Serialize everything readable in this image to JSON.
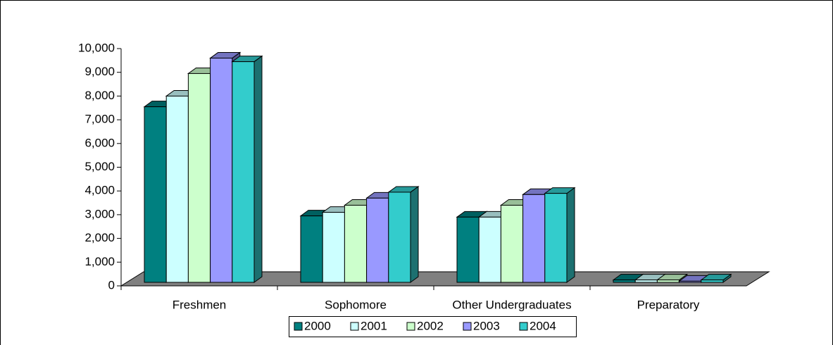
{
  "chart_data": {
    "type": "bar3d",
    "categories": [
      "Freshmen",
      "Sophomore",
      "Other Undergraduates",
      "Preparatory"
    ],
    "series": [
      {
        "name": "2000",
        "color": "#008080",
        "values": [
          7400,
          2800,
          2750,
          100
        ]
      },
      {
        "name": "2001",
        "color": "#CCFFFF",
        "values": [
          7850,
          2950,
          2750,
          100
        ]
      },
      {
        "name": "2002",
        "color": "#CCFFCC",
        "values": [
          8800,
          3250,
          3250,
          100
        ]
      },
      {
        "name": "2003",
        "color": "#9999FF",
        "values": [
          9450,
          3550,
          3700,
          50
        ]
      },
      {
        "name": "2004",
        "color": "#33CCCC",
        "values": [
          9300,
          3800,
          3750,
          100
        ]
      }
    ],
    "ylim": [
      0,
      10000
    ],
    "yticks": [
      0,
      {
        "value": 1000,
        "label": "1,000"
      },
      {
        "value": 2000,
        "label": "2,000"
      },
      {
        "value": 3000,
        "label": "3,000"
      },
      {
        "value": 4000,
        "label": "4,000"
      },
      {
        "value": 5000,
        "label": "5,000"
      },
      {
        "value": 6000,
        "label": "6,000"
      },
      {
        "value": 7000,
        "label": "7,000"
      },
      {
        "value": 8000,
        "label": "8,000"
      },
      {
        "value": 9000,
        "label": "9,000"
      },
      {
        "value": 10000,
        "label": "10,000"
      }
    ],
    "legend": "bottom"
  }
}
